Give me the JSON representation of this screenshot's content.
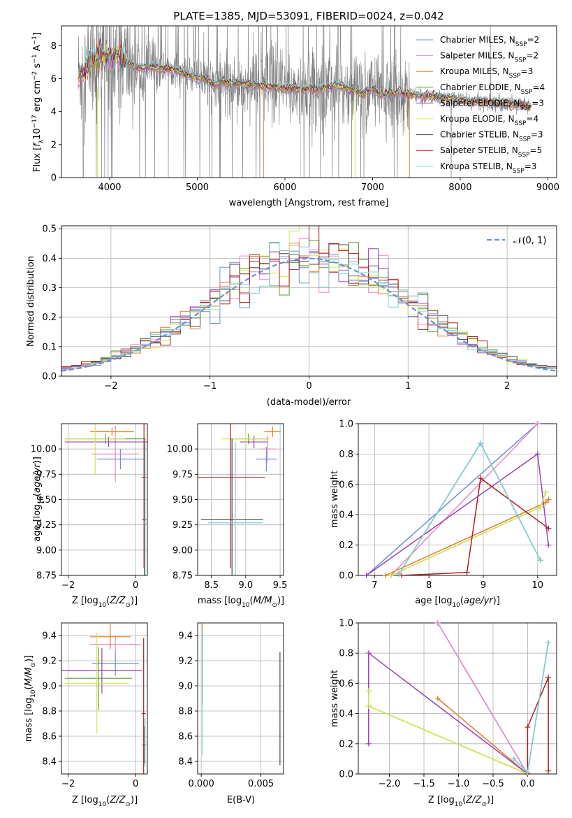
{
  "title": "PLATE=1385, MJD=53091, FIBERID=0024, z=0.042",
  "colors": {
    "Chabrier MILES": "#6b8fdc",
    "Salpeter MILES": "#e58ac6",
    "Kroupa MILES": "#e07b2a",
    "Chabrier ELODIE": "#5c9e3a",
    "Salpeter ELODIE": "#9a3fb5",
    "Kroupa ELODIE": "#d5e84e",
    "Chabrier STELIB": "#4a4a4a",
    "Salpeter STELIB": "#b11d1d",
    "Kroupa STELIB": "#7fd3d8",
    "data": "#808080",
    "normal": "#6b8fdc"
  },
  "legend": [
    {
      "name": "Chabrier MILES",
      "main": "Chabrier MILES, N",
      "sub": "SSP",
      "val": "=2"
    },
    {
      "name": "Salpeter MILES",
      "main": "Salpeter MILES, N",
      "sub": "SSP",
      "val": "=2"
    },
    {
      "name": "Kroupa MILES",
      "main": "Kroupa MILES, N",
      "sub": "SSP",
      "val": "=3"
    },
    {
      "name": "Chabrier ELODIE",
      "main": "Chabrier ELODIE, N",
      "sub": "SSP",
      "val": "=4"
    },
    {
      "name": "Salpeter ELODIE",
      "main": "Salpeter ELODIE, N",
      "sub": "SSP",
      "val": "=3"
    },
    {
      "name": "Kroupa ELODIE",
      "main": "Kroupa ELODIE, N",
      "sub": "SSP",
      "val": "=4"
    },
    {
      "name": "Chabrier STELIB",
      "main": "Chabrier STELIB, N",
      "sub": "SSP",
      "val": "=3"
    },
    {
      "name": "Salpeter STELIB",
      "main": "Salpeter STELIB, N",
      "sub": "SSP",
      "val": "=5"
    },
    {
      "name": "Kroupa STELIB",
      "main": "Kroupa STELIB, N",
      "sub": "SSP",
      "val": "=3"
    }
  ],
  "chart_data": [
    {
      "id": "spectrum",
      "type": "line",
      "title": "PLATE=1385, MJD=53091, FIBERID=0024, z=0.042",
      "xlabel": "wavelength [Angstrom, rest frame]",
      "ylabel": "Flux [f_λ 10^-17 erg cm^-2 s^-1 A^-1]",
      "xlim": [
        3450,
        9100
      ],
      "ylim": [
        0,
        9.2
      ],
      "xticks": [
        4000,
        5000,
        6000,
        7000,
        8000,
        9000
      ],
      "yticks": [
        0,
        2,
        4,
        6,
        8
      ],
      "model_continuum": {
        "x": [
          3640,
          3700,
          3760,
          3800,
          3900,
          4000,
          4100,
          4200,
          4300,
          4400,
          4500,
          4600,
          4700,
          4800,
          4900,
          5000,
          5100,
          5200,
          5300,
          5400,
          5500,
          5600,
          5700,
          5800,
          5900,
          6000,
          6100,
          6200,
          6300,
          6400,
          6500,
          6600,
          6700,
          6800,
          6900,
          7000,
          7100,
          7200,
          7300,
          7400,
          7500,
          7600,
          7700,
          7800,
          7900,
          8000,
          8100,
          8200,
          8300,
          8400,
          8500,
          8600,
          8700,
          8800
        ],
        "y": [
          6.1,
          6.5,
          6.9,
          7.1,
          7.4,
          7.4,
          7.3,
          7.0,
          6.6,
          6.7,
          6.7,
          6.6,
          6.6,
          6.4,
          6.2,
          6.1,
          5.9,
          5.6,
          5.8,
          5.7,
          5.7,
          5.6,
          5.6,
          5.5,
          5.5,
          5.4,
          5.4,
          5.3,
          5.4,
          5.3,
          5.5,
          5.6,
          5.4,
          5.3,
          5.0,
          5.4,
          5.0,
          5.1,
          5.2,
          5.0,
          5.0,
          4.9,
          4.9,
          4.8,
          4.8,
          4.7,
          4.6,
          4.6,
          4.6,
          4.5,
          4.5,
          4.4,
          4.4,
          4.3
        ]
      }
    },
    {
      "id": "residuals",
      "type": "bar",
      "xlabel": "(data-model)/error",
      "ylabel": "Normed distribution",
      "xlim": [
        -2.5,
        2.5
      ],
      "ylim": [
        0,
        0.51
      ],
      "xticks": [
        -2,
        -1,
        0,
        1,
        2
      ],
      "yticks": [
        0.0,
        0.1,
        0.2,
        0.3,
        0.4,
        0.5
      ],
      "legend": "N(0,1)",
      "legend_position": "upper right",
      "bin_width": 0.1
    },
    {
      "id": "age_vs_Z",
      "type": "scatter",
      "xlabel": "Z [log10(Z/Z⊙)]",
      "ylabel": "age [log10(age/yr)]",
      "xlim": [
        -2.2,
        0.35
      ],
      "ylim": [
        8.75,
        10.25
      ],
      "xticks": [
        -2,
        0
      ],
      "yticks": [
        8.75,
        9.0,
        9.25,
        9.5,
        9.75,
        10.0
      ],
      "points": [
        {
          "series": "Chabrier MILES",
          "x": -0.45,
          "xerr": 0.7,
          "y": 9.9,
          "yerr": 0.1
        },
        {
          "series": "Salpeter MILES",
          "x": -0.6,
          "xerr": 0.7,
          "y": 9.95,
          "yerr": 0.28
        },
        {
          "series": "Kroupa MILES",
          "x": -0.7,
          "xerr": 0.65,
          "y": 10.17,
          "yerr": 0.04
        },
        {
          "series": "Chabrier ELODIE",
          "x": -0.9,
          "xerr": 1.2,
          "y": 10.1,
          "yerr": 0.05
        },
        {
          "series": "Salpeter ELODIE",
          "x": -0.8,
          "xerr": 1.3,
          "y": 10.07,
          "yerr": 0.05
        },
        {
          "series": "Kroupa ELODIE",
          "x": -1.2,
          "xerr": 0.9,
          "y": 10.1,
          "yerr": 0.35
        },
        {
          "series": "Chabrier STELIB",
          "x": 0.26,
          "xerr": 0.06,
          "y": 9.3,
          "yerr": 0.8
        },
        {
          "series": "Salpeter STELIB",
          "x": 0.25,
          "xerr": 0.07,
          "y": 9.72,
          "yerr": 0.9
        },
        {
          "series": "Kroupa STELIB",
          "x": 0.28,
          "xerr": 0.04,
          "y": 9.27,
          "yerr": 0.8
        }
      ]
    },
    {
      "id": "age_vs_mass",
      "type": "scatter",
      "xlabel": "mass [log10(M/M⊙)]",
      "ylabel": "",
      "xlim": [
        8.3,
        9.55
      ],
      "ylim": [
        8.75,
        10.25
      ],
      "xticks": [
        8.5,
        9.0,
        9.5
      ],
      "yticks": [
        8.75,
        9.0,
        9.25,
        9.5,
        9.75,
        10.0
      ],
      "points": [
        {
          "series": "Chabrier MILES",
          "x": 9.3,
          "xerr": 0.15,
          "y": 9.9,
          "yerr": 0.12
        },
        {
          "series": "Salpeter MILES",
          "x": 9.32,
          "xerr": 0.12,
          "y": 10.0,
          "yerr": 0.13
        },
        {
          "series": "Kroupa MILES",
          "x": 9.39,
          "xerr": 0.12,
          "y": 10.17,
          "yerr": 0.05
        },
        {
          "series": "Chabrier ELODIE",
          "x": 9.04,
          "xerr": 0.28,
          "y": 10.1,
          "yerr": 0.05
        },
        {
          "series": "Salpeter ELODIE",
          "x": 9.12,
          "xerr": 0.2,
          "y": 10.07,
          "yerr": 0.06
        },
        {
          "series": "Kroupa ELODIE",
          "x": 9.0,
          "xerr": 0.35,
          "y": 10.1,
          "yerr": 0.05
        },
        {
          "series": "Chabrier STELIB",
          "x": 8.8,
          "xerr": 0.45,
          "y": 9.3,
          "yerr": 0.8
        },
        {
          "series": "Salpeter STELIB",
          "x": 8.78,
          "xerr": 0.5,
          "y": 9.72,
          "yerr": 0.9
        },
        {
          "series": "Kroupa STELIB",
          "x": 8.85,
          "xerr": 0.4,
          "y": 9.27,
          "yerr": 0.8
        }
      ]
    },
    {
      "id": "weight_vs_age",
      "type": "line",
      "xlabel": "age [log10(age/yr)]",
      "ylabel": "mass weight",
      "xlim": [
        6.7,
        10.35
      ],
      "ylim": [
        0,
        1.0
      ],
      "xticks": [
        7,
        8,
        9,
        10
      ],
      "yticks": [
        0.0,
        0.2,
        0.4,
        0.6,
        0.8,
        1.0
      ],
      "series": [
        {
          "name": "Chabrier MILES",
          "x": [
            6.85,
            10.0
          ],
          "y": [
            0.0,
            1.0
          ]
        },
        {
          "name": "Salpeter MILES",
          "x": [
            7.3,
            10.0
          ],
          "y": [
            0.0,
            1.0
          ]
        },
        {
          "name": "Kroupa MILES",
          "x": [
            7.2,
            10.15,
            10.2
          ],
          "y": [
            0.0,
            0.48,
            0.5
          ]
        },
        {
          "name": "Chabrier ELODIE",
          "x": [
            7.3,
            10.05,
            10.15
          ],
          "y": [
            0.0,
            0.45,
            0.55
          ]
        },
        {
          "name": "Salpeter ELODIE",
          "x": [
            6.85,
            10.0,
            10.2
          ],
          "y": [
            0.0,
            0.8,
            0.2
          ]
        },
        {
          "name": "Kroupa ELODIE",
          "x": [
            7.3,
            10.05,
            10.15
          ],
          "y": [
            0.0,
            0.45,
            0.55
          ]
        },
        {
          "name": "Chabrier STELIB",
          "x": [
            7.45,
            8.95,
            10.05
          ],
          "y": [
            0.01,
            0.87,
            0.1
          ]
        },
        {
          "name": "Salpeter STELIB",
          "x": [
            7.5,
            8.7,
            8.95,
            10.2
          ],
          "y": [
            0.0,
            0.02,
            0.64,
            0.31
          ]
        },
        {
          "name": "Kroupa STELIB",
          "x": [
            7.45,
            8.95,
            10.05
          ],
          "y": [
            0.01,
            0.87,
            0.1
          ]
        }
      ]
    },
    {
      "id": "mass_vs_Z",
      "type": "scatter",
      "xlabel": "Z [log10(Z/Z⊙)]",
      "ylabel": "mass [log10(M/M⊙)]",
      "xlim": [
        -2.2,
        0.35
      ],
      "ylim": [
        8.3,
        9.5
      ],
      "xticks": [
        -2,
        0
      ],
      "yticks": [
        8.4,
        8.6,
        8.8,
        9.0,
        9.2,
        9.4
      ],
      "points": [
        {
          "series": "Chabrier MILES",
          "x": -0.6,
          "xerr": 0.7,
          "y": 9.18,
          "yerr": 0.1
        },
        {
          "series": "Salpeter MILES",
          "x": -0.6,
          "xerr": 0.75,
          "y": 9.33,
          "yerr": 0.07
        },
        {
          "series": "Kroupa MILES",
          "x": -0.75,
          "xerr": 0.6,
          "y": 9.39,
          "yerr": 0.1
        },
        {
          "series": "Chabrier ELODIE",
          "x": -1.1,
          "xerr": 1.0,
          "y": 9.06,
          "yerr": 0.25
        },
        {
          "series": "Salpeter ELODIE",
          "x": -1.0,
          "xerr": 1.2,
          "y": 9.12,
          "yerr": 0.18
        },
        {
          "series": "Kroupa ELODIE",
          "x": -1.15,
          "xerr": 0.95,
          "y": 9.02,
          "yerr": 0.4
        },
        {
          "series": "Chabrier STELIB",
          "x": 0.25,
          "xerr": 0.06,
          "y": 8.53,
          "yerr": 0.15
        },
        {
          "series": "Salpeter STELIB",
          "x": 0.24,
          "xerr": 0.06,
          "y": 8.78,
          "yerr": 0.6
        },
        {
          "series": "Kroupa STELIB",
          "x": 0.28,
          "xerr": 0.04,
          "y": 8.55,
          "yerr": 0.19
        }
      ]
    },
    {
      "id": "mass_vs_EBV",
      "type": "scatter",
      "xlabel": "E(B-V)",
      "ylabel": "",
      "xlim": [
        -0.0003,
        0.0069
      ],
      "ylim": [
        8.3,
        9.5
      ],
      "xticks": [
        0.0,
        0.005
      ],
      "yticks": [
        8.4,
        8.6,
        8.8,
        9.0,
        9.2,
        9.4
      ],
      "points": [
        {
          "series": "Kroupa MILES",
          "x": 0.0001,
          "xerr": 0,
          "y": 9.39,
          "yerr": 0.1
        },
        {
          "series": "Salpeter MILES",
          "x": 0.0001,
          "xerr": 0,
          "y": 9.33,
          "yerr": 0.07
        },
        {
          "series": "Salpeter STELIB",
          "x": 0.0001,
          "xerr": 0,
          "y": 9.15,
          "yerr": 0.3
        },
        {
          "series": "Kroupa STELIB",
          "x": 0.0001,
          "xerr": 0,
          "y": 8.95,
          "yerr": 0.5
        },
        {
          "series": "Chabrier STELIB",
          "x": 0.0066,
          "xerr": 0,
          "y": 8.82,
          "yerr": 0.45
        }
      ]
    },
    {
      "id": "weight_vs_Z",
      "type": "line",
      "xlabel": "Z [log10(Z/Z⊙)]",
      "ylabel": "mass weight",
      "xlim": [
        -2.45,
        0.42
      ],
      "ylim": [
        0,
        1.0
      ],
      "xticks": [
        -2.0,
        -1.5,
        -1.0,
        -0.5,
        0.0
      ],
      "yticks": [
        0.0,
        0.2,
        0.4,
        0.6,
        0.8,
        1.0
      ],
      "series": [
        {
          "name": "Chabrier MILES",
          "x": [
            -1.3,
            0.0
          ],
          "y": [
            1.0,
            0.0
          ]
        },
        {
          "name": "Salpeter MILES",
          "x": [
            -1.3,
            0.0
          ],
          "y": [
            1.0,
            0.0
          ]
        },
        {
          "name": "Kroupa MILES",
          "x": [
            -1.3,
            0.0
          ],
          "y": [
            0.5,
            0.0
          ]
        },
        {
          "name": "Chabrier ELODIE",
          "x": [
            -2.3,
            -2.3,
            0.0
          ],
          "y": [
            0.55,
            0.45,
            0.0
          ]
        },
        {
          "name": "Salpeter ELODIE",
          "x": [
            -2.3,
            -2.3,
            0.0
          ],
          "y": [
            0.2,
            0.8,
            0.0
          ]
        },
        {
          "name": "Kroupa ELODIE",
          "x": [
            -2.3,
            -2.3,
            0.0
          ],
          "y": [
            0.55,
            0.45,
            0.0
          ]
        },
        {
          "name": "Chabrier STELIB",
          "x": [
            -0.2,
            0.0,
            0.3
          ],
          "y": [
            0.1,
            0.01,
            0.87
          ]
        },
        {
          "name": "Salpeter STELIB",
          "x": [
            0.0,
            0.0,
            0.3,
            0.3
          ],
          "y": [
            0.0,
            0.31,
            0.64,
            0.02
          ]
        },
        {
          "name": "Kroupa STELIB",
          "x": [
            -0.2,
            0.0,
            0.3
          ],
          "y": [
            0.1,
            0.01,
            0.87
          ]
        }
      ]
    }
  ],
  "labels": {
    "p1_xlabel": "wavelength [Angstrom, rest frame]",
    "p2_xlabel": "(data-model)/error",
    "p2_ylabel": "Normed distribution",
    "p2_legend": "𝒩(0, 1)",
    "p3_ylabel_a": "age  [log",
    "p3_ylabel_b": "(age/yr)]",
    "p3_xlabel": "Z [log",
    "p4_xlabel": "mass [log",
    "p5_xlabel": "age  [log",
    "p5_xlabel_b": "(age/yr)]",
    "p5_ylabel": "mass weight",
    "p6_ylabel": "mass [log",
    "p7_xlabel": "E(B-V)",
    "p8_xlabel": "Z [log",
    "p8_ylabel": "mass weight"
  }
}
